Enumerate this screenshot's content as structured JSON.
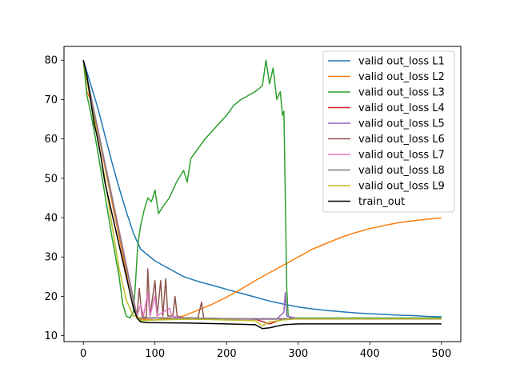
{
  "chart_data": {
    "type": "line",
    "title": "",
    "xlabel": "",
    "ylabel": "",
    "xlim": [
      -27,
      527
    ],
    "ylim": [
      8.5,
      83.5
    ],
    "xticks": [
      0,
      100,
      200,
      300,
      400,
      500
    ],
    "yticks": [
      10,
      20,
      30,
      40,
      50,
      60,
      70,
      80
    ],
    "grid": false,
    "legend_position": "top-right",
    "series": [
      {
        "name": "valid out_loss L1",
        "color": "#1f77b4",
        "points": [
          [
            0,
            80
          ],
          [
            5,
            77
          ],
          [
            10,
            74
          ],
          [
            20,
            68
          ],
          [
            30,
            61
          ],
          [
            40,
            54
          ],
          [
            50,
            47.5
          ],
          [
            60,
            41.5
          ],
          [
            70,
            36
          ],
          [
            80,
            32
          ],
          [
            90,
            30.5
          ],
          [
            100,
            29
          ],
          [
            120,
            27
          ],
          [
            140,
            25
          ],
          [
            160,
            23.8
          ],
          [
            180,
            22.8
          ],
          [
            200,
            21.8
          ],
          [
            220,
            20.8
          ],
          [
            240,
            19.8
          ],
          [
            260,
            18.8
          ],
          [
            280,
            18
          ],
          [
            300,
            17.3
          ],
          [
            320,
            16.8
          ],
          [
            340,
            16.4
          ],
          [
            360,
            16.1
          ],
          [
            380,
            15.8
          ],
          [
            400,
            15.6
          ],
          [
            420,
            15.4
          ],
          [
            440,
            15.2
          ],
          [
            460,
            15.1
          ],
          [
            480,
            14.9
          ],
          [
            500,
            14.8
          ]
        ]
      },
      {
        "name": "valid out_loss L2",
        "color": "#ff7f0e",
        "points": [
          [
            0,
            80
          ],
          [
            5,
            72
          ],
          [
            10,
            70
          ],
          [
            20,
            62
          ],
          [
            30,
            53
          ],
          [
            40,
            44
          ],
          [
            50,
            35
          ],
          [
            60,
            26
          ],
          [
            65,
            21
          ],
          [
            70,
            17
          ],
          [
            75,
            15
          ],
          [
            80,
            14.2
          ],
          [
            100,
            14
          ],
          [
            120,
            14.3
          ],
          [
            140,
            15
          ],
          [
            160,
            16.5
          ],
          [
            180,
            18
          ],
          [
            200,
            19.8
          ],
          [
            220,
            21.8
          ],
          [
            240,
            24
          ],
          [
            260,
            26
          ],
          [
            280,
            28
          ],
          [
            300,
            30
          ],
          [
            320,
            32
          ],
          [
            340,
            33.5
          ],
          [
            360,
            35
          ],
          [
            380,
            36.2
          ],
          [
            400,
            37.2
          ],
          [
            420,
            38
          ],
          [
            440,
            38.7
          ],
          [
            460,
            39.2
          ],
          [
            480,
            39.6
          ],
          [
            500,
            39.9
          ]
        ]
      },
      {
        "name": "valid out_loss L3",
        "color": "#2ca02c",
        "points": [
          [
            0,
            80
          ],
          [
            5,
            71
          ],
          [
            10,
            67
          ],
          [
            20,
            57
          ],
          [
            30,
            46
          ],
          [
            40,
            35
          ],
          [
            50,
            25
          ],
          [
            55,
            18
          ],
          [
            60,
            15
          ],
          [
            65,
            14.5
          ],
          [
            70,
            16
          ],
          [
            73,
            24
          ],
          [
            76,
            33
          ],
          [
            80,
            38
          ],
          [
            85,
            42
          ],
          [
            90,
            45
          ],
          [
            95,
            44
          ],
          [
            100,
            47
          ],
          [
            105,
            41
          ],
          [
            110,
            42.5
          ],
          [
            120,
            45
          ],
          [
            125,
            47
          ],
          [
            130,
            49
          ],
          [
            140,
            52
          ],
          [
            145,
            49
          ],
          [
            150,
            55
          ],
          [
            160,
            57.5
          ],
          [
            170,
            60
          ],
          [
            180,
            62
          ],
          [
            190,
            64
          ],
          [
            200,
            66
          ],
          [
            210,
            68.5
          ],
          [
            220,
            70
          ],
          [
            230,
            71
          ],
          [
            240,
            72
          ],
          [
            250,
            73.5
          ],
          [
            255,
            80
          ],
          [
            260,
            74
          ],
          [
            265,
            78
          ],
          [
            270,
            70
          ],
          [
            275,
            72
          ],
          [
            278,
            66
          ],
          [
            280,
            67
          ],
          [
            282,
            45
          ],
          [
            284,
            22
          ],
          [
            286,
            15
          ],
          [
            290,
            14.5
          ],
          [
            300,
            14.5
          ],
          [
            350,
            14.5
          ],
          [
            400,
            14.5
          ],
          [
            450,
            14.5
          ],
          [
            500,
            14.5
          ]
        ]
      },
      {
        "name": "valid out_loss L4",
        "color": "#d62728",
        "points": [
          [
            0,
            80
          ],
          [
            75,
            14.5
          ],
          [
            100,
            14.5
          ],
          [
            150,
            14.5
          ],
          [
            200,
            14.3
          ],
          [
            240,
            14.2
          ],
          [
            260,
            13
          ],
          [
            280,
            14.3
          ],
          [
            300,
            14.3
          ],
          [
            400,
            14.3
          ],
          [
            500,
            14.3
          ]
        ]
      },
      {
        "name": "valid out_loss L5",
        "color": "#9467bd",
        "points": [
          [
            0,
            80
          ],
          [
            75,
            14.5
          ],
          [
            100,
            14.5
          ],
          [
            150,
            14.5
          ],
          [
            200,
            14.3
          ],
          [
            240,
            14.2
          ],
          [
            270,
            14.2
          ],
          [
            280,
            16
          ],
          [
            282,
            21
          ],
          [
            284,
            15
          ],
          [
            300,
            14.3
          ],
          [
            400,
            14.3
          ],
          [
            500,
            14.3
          ]
        ]
      },
      {
        "name": "valid out_loss L6",
        "color": "#8c564b",
        "points": [
          [
            0,
            80
          ],
          [
            75,
            15
          ],
          [
            78,
            22
          ],
          [
            82,
            15
          ],
          [
            88,
            14.5
          ],
          [
            90,
            27
          ],
          [
            93,
            15
          ],
          [
            100,
            24
          ],
          [
            103,
            15
          ],
          [
            108,
            24
          ],
          [
            111,
            15
          ],
          [
            115,
            24.5
          ],
          [
            118,
            15
          ],
          [
            125,
            15
          ],
          [
            128,
            20
          ],
          [
            131,
            15
          ],
          [
            140,
            14.5
          ],
          [
            160,
            14.5
          ],
          [
            165,
            18.5
          ],
          [
            168,
            14.5
          ],
          [
            200,
            14.3
          ],
          [
            300,
            14.3
          ],
          [
            500,
            14.3
          ]
        ]
      },
      {
        "name": "valid out_loss L7",
        "color": "#e377c2",
        "points": [
          [
            0,
            80
          ],
          [
            75,
            15
          ],
          [
            80,
            18
          ],
          [
            84,
            15
          ],
          [
            90,
            21
          ],
          [
            93,
            15
          ],
          [
            100,
            20
          ],
          [
            103,
            15
          ],
          [
            120,
            17
          ],
          [
            124,
            15
          ],
          [
            140,
            14.5
          ],
          [
            200,
            14.3
          ],
          [
            300,
            14.3
          ],
          [
            500,
            14.3
          ]
        ]
      },
      {
        "name": "valid out_loss L8",
        "color": "#7f7f7f",
        "points": [
          [
            0,
            80
          ],
          [
            75,
            14.5
          ],
          [
            100,
            14.5
          ],
          [
            150,
            14.5
          ],
          [
            200,
            14.3
          ],
          [
            300,
            14.3
          ],
          [
            400,
            14.3
          ],
          [
            500,
            14.3
          ]
        ]
      },
      {
        "name": "valid out_loss L9",
        "color": "#bcbd22",
        "points": [
          [
            0,
            80
          ],
          [
            10,
            70
          ],
          [
            20,
            60
          ],
          [
            30,
            50
          ],
          [
            40,
            38
          ],
          [
            50,
            27
          ],
          [
            60,
            19
          ],
          [
            70,
            15
          ],
          [
            75,
            15
          ],
          [
            80,
            13.8
          ],
          [
            100,
            14
          ],
          [
            150,
            14.2
          ],
          [
            200,
            14
          ],
          [
            240,
            13.8
          ],
          [
            250,
            12.5
          ],
          [
            260,
            13.5
          ],
          [
            280,
            14
          ],
          [
            300,
            14.3
          ],
          [
            400,
            14.3
          ],
          [
            500,
            14.3
          ]
        ]
      },
      {
        "name": "train_out",
        "color": "#000000",
        "points": [
          [
            0,
            80
          ],
          [
            5,
            76
          ],
          [
            10,
            70
          ],
          [
            15,
            64
          ],
          [
            20,
            60
          ],
          [
            25,
            55
          ],
          [
            30,
            49
          ],
          [
            40,
            41
          ],
          [
            50,
            33
          ],
          [
            60,
            25
          ],
          [
            65,
            21
          ],
          [
            70,
            17
          ],
          [
            75,
            14.5
          ],
          [
            80,
            13.5
          ],
          [
            90,
            13.3
          ],
          [
            100,
            13.3
          ],
          [
            150,
            13.2
          ],
          [
            200,
            13
          ],
          [
            240,
            12.8
          ],
          [
            250,
            11.8
          ],
          [
            260,
            12
          ],
          [
            280,
            12.8
          ],
          [
            300,
            13
          ],
          [
            400,
            13
          ],
          [
            500,
            13
          ]
        ]
      }
    ]
  }
}
